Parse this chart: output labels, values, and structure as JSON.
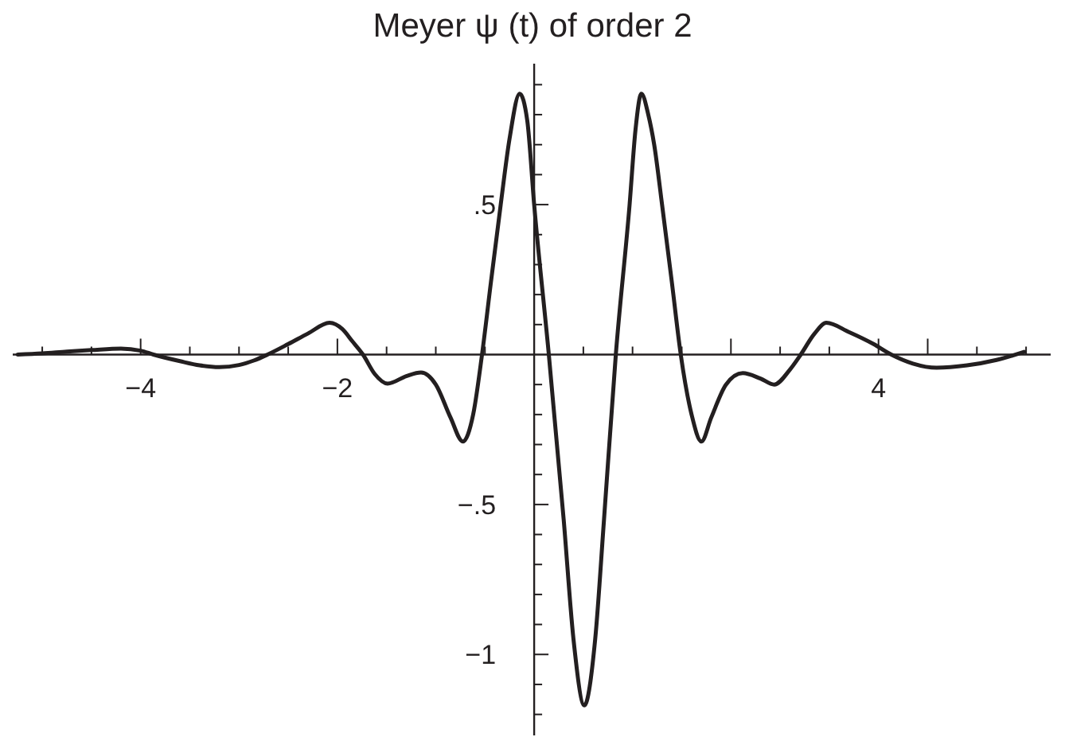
{
  "chart_data": {
    "type": "line",
    "title": "Meyer ψ (t) of order 2",
    "x": [
      -5.25,
      -5.0,
      -4.75,
      -4.5,
      -4.2,
      -4.0,
      -3.87,
      -3.6,
      -3.4,
      -3.2,
      -3.0,
      -2.85,
      -2.71,
      -2.5,
      -2.3,
      -2.08,
      -1.95,
      -1.85,
      -1.74,
      -1.62,
      -1.49,
      -1.3,
      -1.15,
      -1.0,
      -0.85,
      -0.725,
      -0.62,
      -0.53,
      -0.44,
      -0.34,
      -0.25,
      -0.147,
      -0.07,
      0.0,
      0.149,
      0.3,
      0.4,
      0.51,
      0.62,
      0.71,
      0.83,
      0.97,
      1.03,
      1.09,
      1.16,
      1.22,
      1.3,
      1.4,
      1.49,
      1.6,
      1.7,
      1.8,
      1.95,
      2.12,
      2.3,
      2.44,
      2.6,
      2.71,
      2.85,
      2.97,
      3.2,
      3.45,
      3.63,
      3.85,
      4.09,
      4.4,
      4.7,
      4.98
    ],
    "values": [
      0.0,
      0.004,
      0.01,
      0.015,
      0.02,
      0.013,
      0.0,
      -0.022,
      -0.036,
      -0.042,
      -0.035,
      -0.02,
      0.0,
      0.035,
      0.07,
      0.106,
      0.085,
      0.045,
      0.0,
      -0.065,
      -0.097,
      -0.072,
      -0.06,
      -0.1,
      -0.21,
      -0.29,
      -0.2,
      0.0,
      0.24,
      0.5,
      0.72,
      0.87,
      0.78,
      0.5,
      0.0,
      -0.55,
      -0.95,
      -1.17,
      -0.95,
      -0.55,
      0.0,
      0.5,
      0.75,
      0.87,
      0.8,
      0.7,
      0.5,
      0.24,
      0.0,
      -0.2,
      -0.29,
      -0.21,
      -0.1,
      -0.062,
      -0.08,
      -0.1,
      -0.05,
      0.0,
      0.07,
      0.106,
      0.075,
      0.035,
      0.0,
      -0.03,
      -0.044,
      -0.036,
      -0.018,
      0.009
    ],
    "color": "#231f20",
    "marker": "none",
    "line_style": "solid",
    "xlim": [
      -5.3,
      5.25
    ],
    "ylim": [
      -1.27,
      0.97
    ],
    "xticks": [
      {
        "value": -5,
        "label": null
      },
      {
        "value": -4.5,
        "label": null
      },
      {
        "value": -4,
        "label": "−4"
      },
      {
        "value": -3.5,
        "label": null
      },
      {
        "value": -3,
        "label": null
      },
      {
        "value": -2.5,
        "label": null
      },
      {
        "value": -2,
        "label": "−2"
      },
      {
        "value": -1.5,
        "label": null
      },
      {
        "value": -1,
        "label": null
      },
      {
        "value": -0.5,
        "label": null
      },
      {
        "value": 0.5,
        "label": null
      },
      {
        "value": 1,
        "label": null
      },
      {
        "value": 1.5,
        "label": null
      },
      {
        "value": 2,
        "label": null
      },
      {
        "value": 2.5,
        "label": null
      },
      {
        "value": 3,
        "label": null
      },
      {
        "value": 3.5,
        "label": "4"
      },
      {
        "value": 4,
        "label": null
      },
      {
        "value": 4.5,
        "label": null
      },
      {
        "value": 5,
        "label": null
      }
    ],
    "yticks": [
      {
        "value": -1.2,
        "label": null
      },
      {
        "value": -1.1,
        "label": null
      },
      {
        "value": -1,
        "label": "−1"
      },
      {
        "value": -0.9,
        "label": null
      },
      {
        "value": -0.8,
        "label": null
      },
      {
        "value": -0.7,
        "label": null
      },
      {
        "value": -0.6,
        "label": null
      },
      {
        "value": -0.5,
        "label": "−.5"
      },
      {
        "value": -0.4,
        "label": null
      },
      {
        "value": -0.3,
        "label": null
      },
      {
        "value": -0.2,
        "label": null
      },
      {
        "value": -0.1,
        "label": null
      },
      {
        "value": 0.1,
        "label": null
      },
      {
        "value": 0.2,
        "label": null
      },
      {
        "value": 0.3,
        "label": null
      },
      {
        "value": 0.4,
        "label": null
      },
      {
        "value": 0.5,
        "label": ".5"
      },
      {
        "value": 0.6,
        "label": null
      },
      {
        "value": 0.7,
        "label": null
      },
      {
        "value": 0.8,
        "label": null
      },
      {
        "value": 0.9,
        "label": null
      }
    ]
  }
}
